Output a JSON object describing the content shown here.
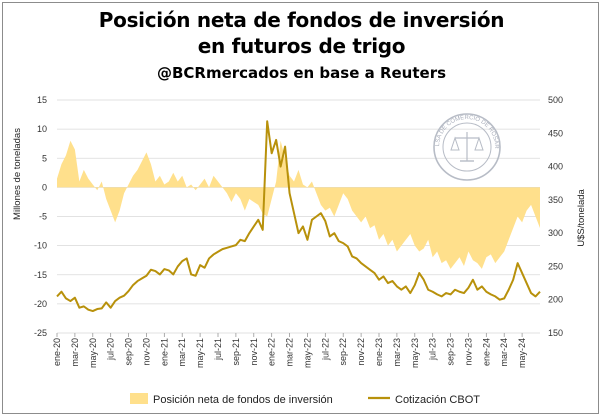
{
  "header": {
    "title_line1": "Posición neta de fondos de inversión",
    "title_line2": "en futuros de trigo",
    "subtitle": "@BCRmercados en base a Reuters"
  },
  "logo": {
    "text": "BOLSA DE COMERCIO DE ROSARIO"
  },
  "chart_data": {
    "type": "area+line",
    "title": "Posición neta de fondos de inversión en futuros de trigo",
    "ylabel_left": "Millones de toneladas",
    "ylabel_right": "U$S/tonelada",
    "ylim_left": [
      -25,
      15
    ],
    "ylim_right": [
      150,
      500
    ],
    "yticks_left": [
      "15",
      "10",
      "5",
      "0",
      "-5",
      "-10",
      "-15",
      "-20",
      "-25"
    ],
    "yticks_right": [
      "500",
      "450",
      "400",
      "350",
      "300",
      "250",
      "200",
      "150"
    ],
    "x_ticks": [
      "ene-20",
      "mar-20",
      "may-20",
      "jul-20",
      "sep-20",
      "nov-20",
      "ene-21",
      "mar-21",
      "may-21",
      "jul-21",
      "sep-21",
      "nov-21",
      "ene-22",
      "mar-22",
      "may-22",
      "jul-22",
      "sep-22",
      "nov-22",
      "ene-23",
      "mar-23",
      "may-23",
      "jul-23",
      "sep-23",
      "nov-23",
      "ene-24",
      "mar-24",
      "may-24"
    ],
    "legend": [
      "Posición neta de fondos de inversión",
      "Cotización CBOT"
    ],
    "colors": {
      "area": "#ffe08c",
      "line": "#b8910b"
    },
    "series": [
      {
        "name": "Posición neta de fondos de inversión",
        "axis": "left",
        "x": [
          0,
          0.5,
          1,
          1.5,
          2,
          2.5,
          3,
          3.5,
          4,
          4.5,
          5,
          5.5,
          6,
          6.5,
          7,
          7.5,
          8,
          8.5,
          9,
          9.5,
          10,
          10.5,
          11,
          11.5,
          12,
          12.5,
          13,
          13.5,
          14,
          14.5,
          15,
          15.5,
          16,
          16.5,
          17,
          17.5,
          18,
          18.5,
          19,
          19.5,
          20,
          20.5,
          21,
          21.5,
          22,
          22.5,
          23,
          23.5,
          24,
          24.5,
          25,
          25.5,
          26,
          26.5,
          27,
          27.5,
          28,
          28.5,
          29,
          29.5,
          30,
          30.5,
          31,
          31.5,
          32,
          32.5,
          33,
          33.5,
          34,
          34.5,
          35,
          35.5,
          36,
          36.5,
          37,
          37.5,
          38,
          38.5,
          39,
          39.5,
          40,
          40.5,
          41,
          41.5,
          42,
          42.5,
          43,
          43.5,
          44,
          44.5,
          45,
          45.5,
          46,
          46.5,
          47,
          47.5,
          48,
          48.5,
          49,
          49.5,
          50,
          50.5,
          51,
          51.5,
          52,
          52.5,
          53,
          53.5,
          54
        ],
        "values": [
          1.5,
          4,
          5.5,
          8,
          6.5,
          1,
          3,
          1.5,
          0.5,
          -0.5,
          1,
          -2,
          -4,
          -6,
          -4,
          -1,
          0.5,
          2,
          3,
          4.5,
          6,
          4,
          1,
          2,
          0.5,
          1,
          2.5,
          1,
          2,
          0,
          0.5,
          -0.5,
          0.5,
          1.5,
          0,
          2,
          1,
          0,
          -1,
          -2.5,
          -1,
          -2,
          -4,
          -2,
          -2.5,
          -3,
          -4.5,
          -5,
          -2,
          1,
          8,
          5,
          2,
          1,
          3,
          0.5,
          0,
          1,
          -1,
          -3,
          -4,
          -3.5,
          -5,
          -3,
          -1,
          -2,
          -4,
          -5,
          -6,
          -5,
          -7,
          -6.5,
          -9,
          -8,
          -10,
          -9,
          -11,
          -10,
          -9,
          -8,
          -10,
          -11,
          -10.5,
          -9,
          -12,
          -11,
          -13,
          -12.5,
          -14,
          -13,
          -12,
          -13.5,
          -11,
          -12.5,
          -13,
          -14,
          -12,
          -11.5,
          -13,
          -12,
          -11,
          -9,
          -7,
          -5,
          -6,
          -4,
          -3,
          -5,
          -7
        ]
      },
      {
        "name": "Cotización CBOT",
        "axis": "right",
        "x": [
          0,
          0.5,
          1,
          1.5,
          2,
          2.5,
          3,
          3.5,
          4,
          4.5,
          5,
          5.5,
          6,
          6.5,
          7,
          7.5,
          8,
          8.5,
          9,
          9.5,
          10,
          10.5,
          11,
          11.5,
          12,
          12.5,
          13,
          13.5,
          14,
          14.5,
          15,
          15.5,
          16,
          16.5,
          17,
          17.5,
          18,
          18.5,
          19,
          19.5,
          20,
          20.5,
          21,
          21.5,
          22,
          22.5,
          23,
          23.5,
          24,
          24.5,
          25,
          25.5,
          26,
          26.5,
          27,
          27.5,
          28,
          28.5,
          29,
          29.5,
          30,
          30.5,
          31,
          31.5,
          32,
          32.5,
          33,
          33.5,
          34,
          34.5,
          35,
          35.5,
          36,
          36.5,
          37,
          37.5,
          38,
          38.5,
          39,
          39.5,
          40,
          40.5,
          41,
          41.5,
          42,
          42.5,
          43,
          43.5,
          44,
          44.5,
          45,
          45.5,
          46,
          46.5,
          47,
          47.5,
          48,
          48.5,
          49,
          49.5,
          50,
          50.5,
          51,
          51.5,
          52,
          52.5,
          53,
          53.5,
          54
        ],
        "values": [
          205,
          212,
          202,
          198,
          203,
          188,
          190,
          185,
          183,
          186,
          187,
          196,
          188,
          198,
          203,
          206,
          213,
          222,
          228,
          232,
          236,
          245,
          243,
          238,
          246,
          244,
          238,
          250,
          258,
          262,
          238,
          236,
          252,
          248,
          262,
          268,
          272,
          276,
          278,
          280,
          282,
          290,
          288,
          300,
          310,
          320,
          305,
          468,
          420,
          440,
          400,
          430,
          360,
          330,
          300,
          310,
          290,
          320,
          325,
          330,
          318,
          295,
          300,
          288,
          285,
          280,
          265,
          262,
          255,
          250,
          245,
          240,
          230,
          235,
          225,
          228,
          220,
          215,
          220,
          210,
          222,
          240,
          230,
          215,
          212,
          208,
          205,
          210,
          208,
          215,
          212,
          210,
          218,
          230,
          215,
          220,
          212,
          208,
          205,
          200,
          202,
          215,
          230,
          255,
          240,
          225,
          210,
          205,
          212
        ]
      }
    ]
  }
}
